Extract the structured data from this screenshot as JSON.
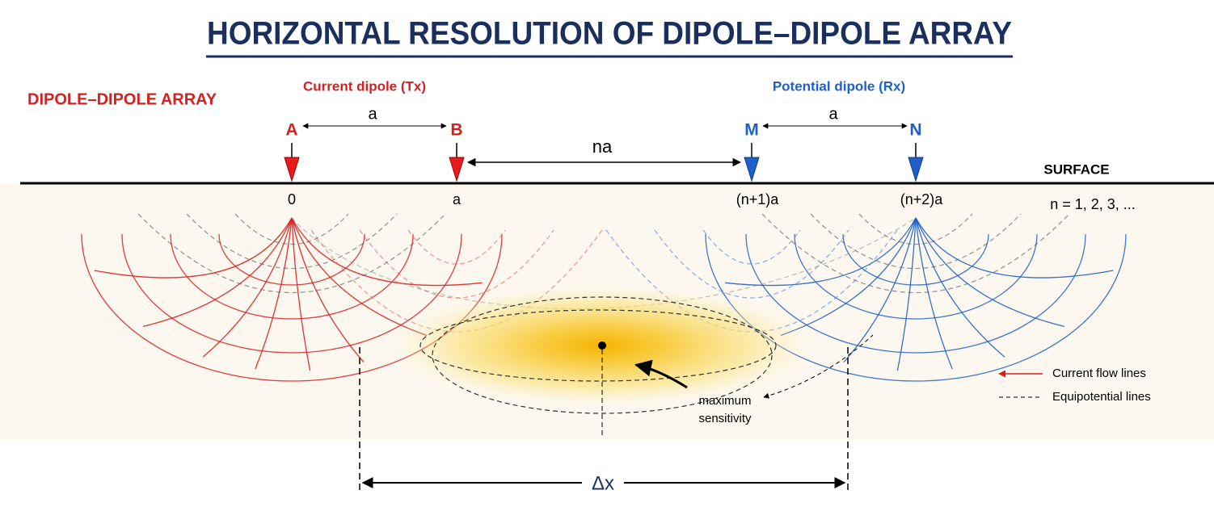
{
  "header": {
    "title": "HORIZONTAL RESOLUTION OF DIPOLE–DIPOLE ARRAY"
  },
  "array_label": "DIPOLE–DIPOLE ARRAY",
  "current_dipole": "Current dipole (Tx)",
  "potential_dipole": "Potential dipole (Rx)",
  "electrodes": [
    "A",
    "B",
    "M",
    "N"
  ],
  "spacings": {
    "tx": "a",
    "between": "na",
    "rx": "a"
  },
  "surface": "SURFACE",
  "positions": [
    "0",
    "a",
    "(n+1)a",
    "(n+2)a"
  ],
  "n_note": "n = 1, 2, 3, ...",
  "annotation": [
    "maximum",
    "sensitivity"
  ],
  "legend": [
    "Current flow lines",
    "Equipotential lines"
  ],
  "resolution": "Δx"
}
